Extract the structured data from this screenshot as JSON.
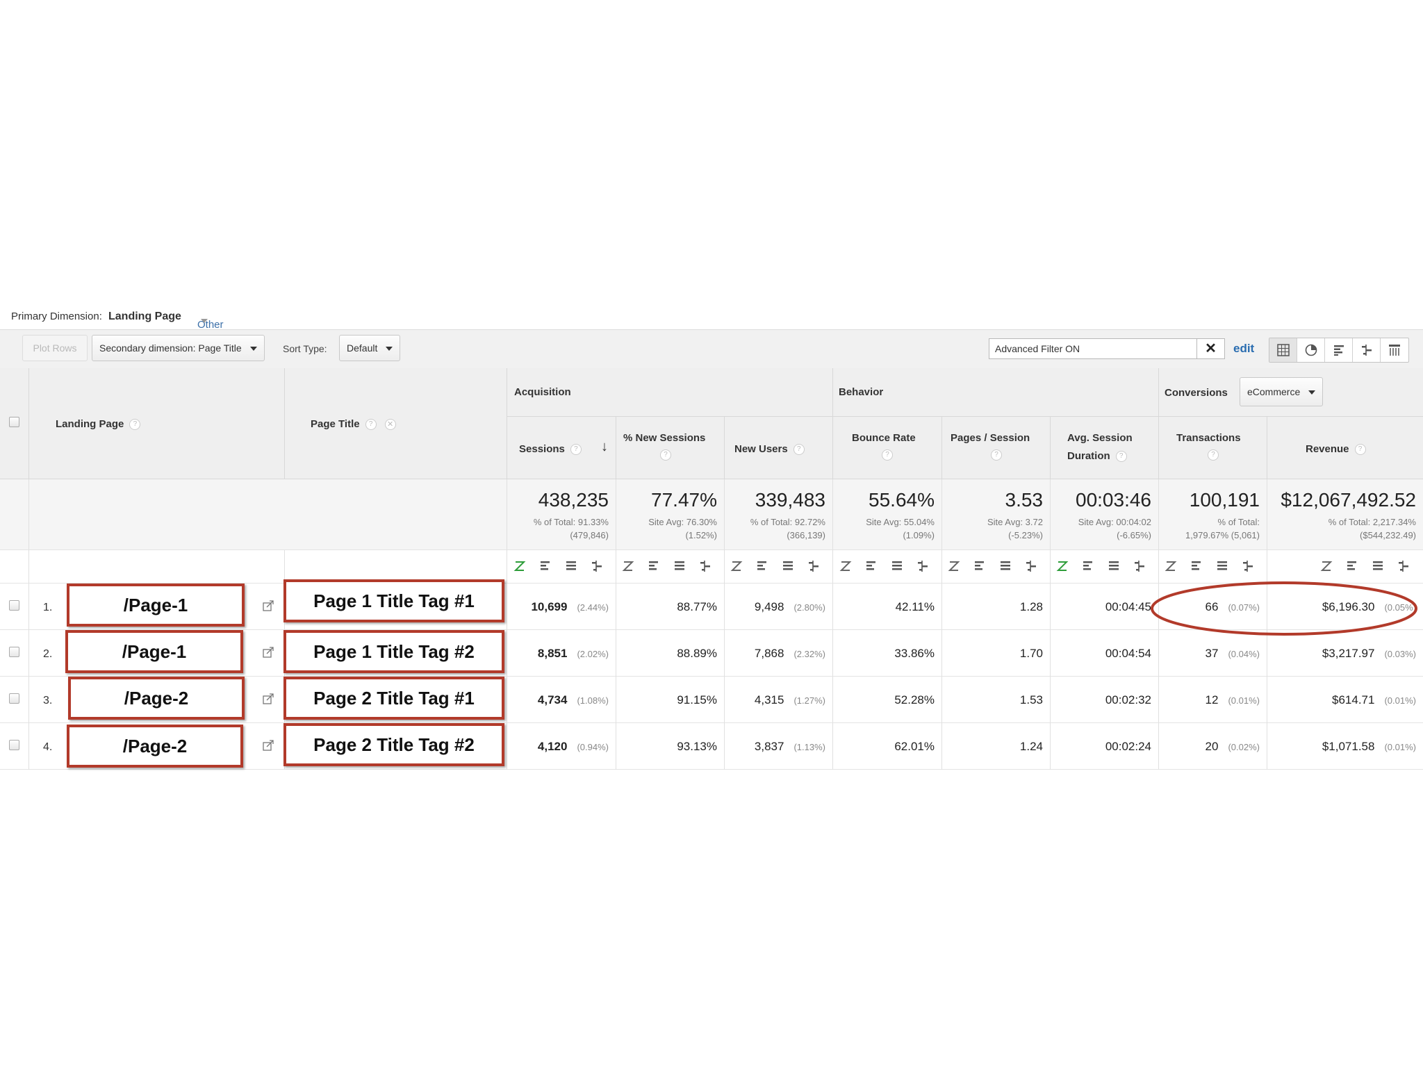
{
  "primary_dimension": {
    "label": "Primary Dimension:",
    "value": "Landing Page",
    "other": "Other"
  },
  "toolbar": {
    "plot_rows": "Plot Rows",
    "secondary_dimension": "Secondary dimension: Page Title",
    "sort_type_label": "Sort Type:",
    "sort_type_value": "Default",
    "filter_value": "Advanced Filter ON",
    "edit": "edit",
    "view_icons": [
      "table-view-icon",
      "pie-view-icon",
      "performance-view-icon",
      "comparison-view-icon",
      "pivot-view-icon"
    ]
  },
  "headers": {
    "landing_page": "Landing Page",
    "page_title": "Page Title",
    "acquisition": "Acquisition",
    "behavior": "Behavior",
    "conversions": "Conversions",
    "conversions_select": "eCommerce",
    "sessions": "Sessions",
    "new_sessions": "% New Sessions",
    "new_users": "New Users",
    "bounce_rate": "Bounce Rate",
    "pages_session": "Pages / Session",
    "avg_session_1": "Avg. Session",
    "avg_session_2": "Duration",
    "transactions": "Transactions",
    "revenue": "Revenue",
    "help": "?"
  },
  "totals": {
    "sessions": {
      "big": "438,235",
      "l1": "% of Total: 91.33%",
      "l2": "(479,846)"
    },
    "new_sessions": {
      "big": "77.47%",
      "l1": "Site Avg: 76.30%",
      "l2": "(1.52%)"
    },
    "new_users": {
      "big": "339,483",
      "l1": "% of Total: 92.72%",
      "l2": "(366,139)"
    },
    "bounce_rate": {
      "big": "55.64%",
      "l1": "Site Avg: 55.04%",
      "l2": "(1.09%)"
    },
    "pages_session": {
      "big": "3.53",
      "l1": "Site Avg: 3.72",
      "l2": "(-5.23%)"
    },
    "avg_duration": {
      "big": "00:03:46",
      "l1": "Site Avg: 00:04:02",
      "l2": "(-6.65%)"
    },
    "transactions": {
      "big": "100,191",
      "l1": "% of Total:",
      "l2": "1,979.67% (5,061)"
    },
    "revenue": {
      "big": "$12,067,492.52",
      "l1": "% of Total: 2,217.34%",
      "l2": "($544,232.49)"
    }
  },
  "rows": [
    {
      "index": "1.",
      "landing": "/Page-1",
      "title": "Page 1 Title Tag #1",
      "sessions": "10,699",
      "sessions_pct": "(2.44%)",
      "new_sessions": "88.77%",
      "new_users": "9,498",
      "new_users_pct": "(2.80%)",
      "bounce": "42.11%",
      "pages": "1.28",
      "duration": "00:04:45",
      "transactions": "66",
      "transactions_pct": "(0.07%)",
      "revenue": "$6,196.30",
      "revenue_pct": "(0.05%)"
    },
    {
      "index": "2.",
      "landing": "/Page-1",
      "title": "Page 1 Title Tag #2",
      "sessions": "8,851",
      "sessions_pct": "(2.02%)",
      "new_sessions": "88.89%",
      "new_users": "7,868",
      "new_users_pct": "(2.32%)",
      "bounce": "33.86%",
      "pages": "1.70",
      "duration": "00:04:54",
      "transactions": "37",
      "transactions_pct": "(0.04%)",
      "revenue": "$3,217.97",
      "revenue_pct": "(0.03%)"
    },
    {
      "index": "3.",
      "landing": "/Page-2",
      "title": "Page 2 Title Tag #1",
      "sessions": "4,734",
      "sessions_pct": "(1.08%)",
      "new_sessions": "91.15%",
      "new_users": "4,315",
      "new_users_pct": "(1.27%)",
      "bounce": "52.28%",
      "pages": "1.53",
      "duration": "00:02:32",
      "transactions": "12",
      "transactions_pct": "(0.01%)",
      "revenue": "$614.71",
      "revenue_pct": "(0.01%)"
    },
    {
      "index": "4.",
      "landing": "/Page-2",
      "title": "Page 2 Title Tag #2",
      "sessions": "4,120",
      "sessions_pct": "(0.94%)",
      "new_sessions": "93.13%",
      "new_users": "3,837",
      "new_users_pct": "(1.13%)",
      "bounce": "62.01%",
      "pages": "1.24",
      "duration": "00:02:24",
      "transactions": "20",
      "transactions_pct": "(0.02%)",
      "revenue": "$1,071.58",
      "revenue_pct": "(0.01%)"
    }
  ],
  "colors": {
    "highlight_box": "#b23a2a",
    "link": "#2a6db0",
    "active_sort": "#2e9d3a"
  }
}
